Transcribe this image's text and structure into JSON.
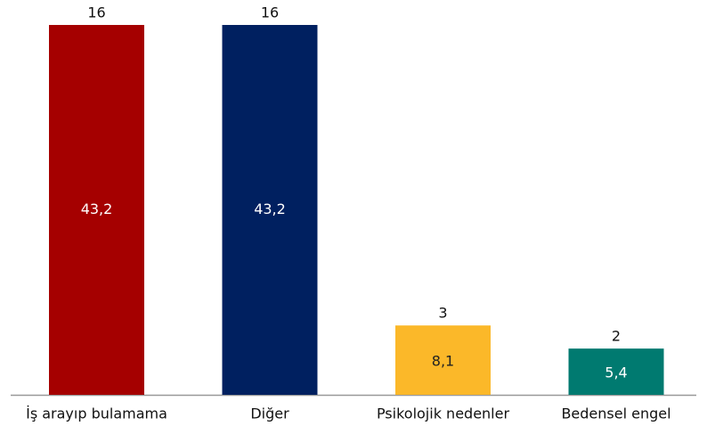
{
  "chart_data": {
    "type": "bar",
    "categories": [
      "İş arayıp bulamama",
      "Diğer",
      "Psikolojik nedenler",
      "Bedensel engel"
    ],
    "values": [
      16,
      16,
      3,
      2
    ],
    "shares": [
      43.2,
      43.2,
      8.1,
      5.4
    ],
    "share_labels": [
      "43,2",
      "43,2",
      "8,1",
      "5,4"
    ],
    "colors": [
      "#a50000",
      "#002060",
      "#fbb829",
      "#007a70"
    ],
    "share_label_colors": [
      "#ffffff",
      "#ffffff",
      "#222222",
      "#ffffff"
    ]
  }
}
